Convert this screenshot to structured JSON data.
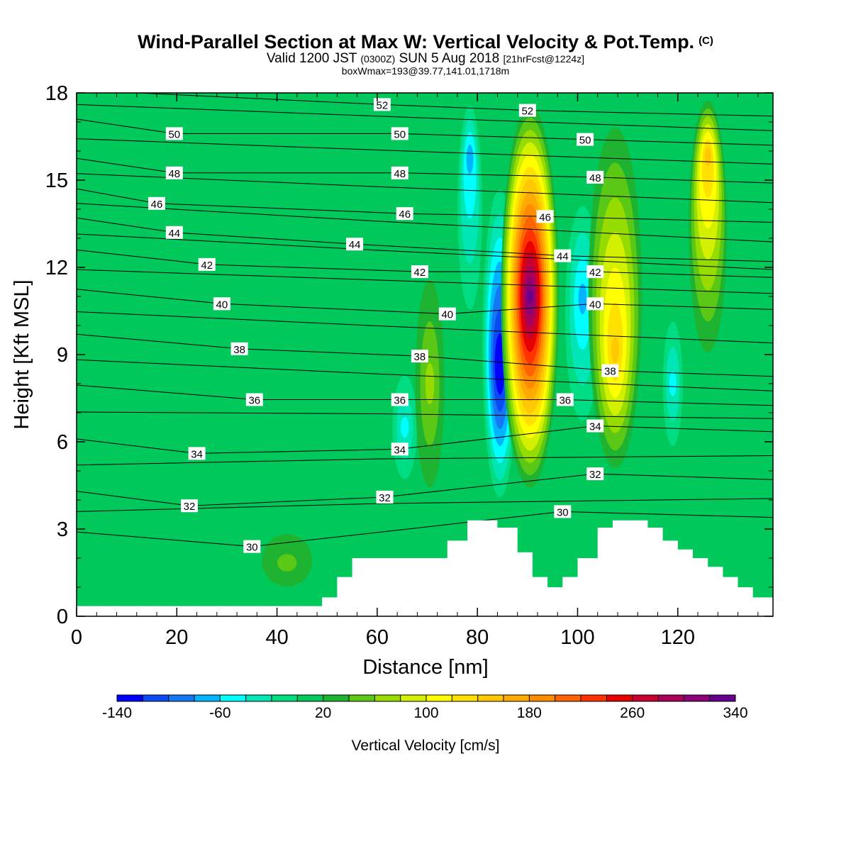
{
  "title": {
    "main": "Wind-Parallel Section at Max W: Vertical Velocity & Pot.Temp.",
    "copyright": "(C)",
    "valid_prefix": "Valid 1200 JST",
    "utc": "(0300Z)",
    "valid_date": "SUN 5 Aug 2018",
    "forecast": "[21hrFcst@1224z]",
    "box": "boxWmax=193@39.77,141.01,1718m"
  },
  "chart_data": {
    "type": "heatmap",
    "xlabel": "Distance [nm]",
    "ylabel": "Height [Kft MSL]",
    "xlim": [
      0,
      139
    ],
    "ylim": [
      0,
      18
    ],
    "xticks": [
      0,
      20,
      40,
      60,
      80,
      100,
      120
    ],
    "yticks": [
      0,
      3,
      6,
      9,
      12,
      15,
      18
    ],
    "colorbar": {
      "label": "Vertical Velocity [cm/s]",
      "tick_labels": [
        -140,
        -60,
        20,
        100,
        180,
        260,
        340
      ],
      "levels": [
        -140,
        -120,
        -100,
        -80,
        -60,
        -40,
        -20,
        0,
        20,
        40,
        60,
        80,
        100,
        120,
        140,
        160,
        180,
        200,
        220,
        240,
        260,
        280,
        300,
        320,
        340
      ],
      "colors": [
        "#0000ff",
        "#0a4bf5",
        "#1478f5",
        "#00b4ff",
        "#00ffff",
        "#00e6b4",
        "#00dc82",
        "#00c85a",
        "#1eb432",
        "#5ac814",
        "#96dc00",
        "#d2f000",
        "#ffff00",
        "#ffe100",
        "#ffc800",
        "#ffaa00",
        "#ff8c00",
        "#ff6400",
        "#ff3200",
        "#e60000",
        "#c80032",
        "#aa005a",
        "#8c0078",
        "#64008c"
      ]
    },
    "terrain_kft": [
      [
        0,
        0.35
      ],
      [
        49,
        0.35
      ],
      [
        49,
        0.65
      ],
      [
        52,
        0.65
      ],
      [
        52,
        1.35
      ],
      [
        55,
        1.35
      ],
      [
        55,
        2.0
      ],
      [
        74,
        2.0
      ],
      [
        74,
        2.6
      ],
      [
        78,
        2.6
      ],
      [
        78,
        3.3
      ],
      [
        84,
        3.3
      ],
      [
        84,
        3.05
      ],
      [
        88,
        3.05
      ],
      [
        88,
        2.2
      ],
      [
        91,
        2.2
      ],
      [
        91,
        1.35
      ],
      [
        94,
        1.35
      ],
      [
        94,
        1.0
      ],
      [
        97,
        1.0
      ],
      [
        97,
        1.35
      ],
      [
        100,
        1.35
      ],
      [
        100,
        2.0
      ],
      [
        104,
        2.0
      ],
      [
        104,
        3.05
      ],
      [
        107,
        3.05
      ],
      [
        107,
        3.3
      ],
      [
        114,
        3.3
      ],
      [
        114,
        3.05
      ],
      [
        117,
        3.05
      ],
      [
        117,
        2.6
      ],
      [
        120,
        2.6
      ],
      [
        120,
        2.3
      ],
      [
        123,
        2.3
      ],
      [
        123,
        2.0
      ],
      [
        126,
        2.0
      ],
      [
        126,
        1.7
      ],
      [
        129,
        1.7
      ],
      [
        129,
        1.35
      ],
      [
        132,
        1.35
      ],
      [
        132,
        1.0
      ],
      [
        135,
        1.0
      ],
      [
        135,
        0.65
      ],
      [
        139,
        0.65
      ]
    ],
    "vertical_velocity_bands": [
      {
        "center_nm": 84.5,
        "half_width_nm": 1.6,
        "bottom_kft": 3.5,
        "top_kft": 15.5,
        "peak_kft": 8.5,
        "value": -140
      },
      {
        "center_nm": 90.5,
        "half_width_nm": 2.6,
        "bottom_kft": 4.0,
        "top_kft": 18.0,
        "peak_kft": 11.0,
        "value": 330
      },
      {
        "center_nm": 101.0,
        "half_width_nm": 1.8,
        "bottom_kft": 5.5,
        "top_kft": 15.0,
        "peak_kft": 11.0,
        "value": -70
      },
      {
        "center_nm": 107.5,
        "half_width_nm": 2.6,
        "bottom_kft": 4.5,
        "top_kft": 18.0,
        "peak_kft": 9.0,
        "value": 140
      },
      {
        "center_nm": 126.0,
        "half_width_nm": 1.8,
        "bottom_kft": 8.0,
        "top_kft": 18.0,
        "peak_kft": 16.0,
        "value": 150
      },
      {
        "center_nm": 78.5,
        "half_width_nm": 1.2,
        "bottom_kft": 9.0,
        "top_kft": 18.0,
        "peak_kft": 16.0,
        "value": -60
      },
      {
        "center_nm": 65.5,
        "half_width_nm": 1.3,
        "bottom_kft": 4.0,
        "top_kft": 9.0,
        "peak_kft": 6.5,
        "value": -50
      },
      {
        "center_nm": 70.5,
        "half_width_nm": 1.6,
        "bottom_kft": 3.0,
        "top_kft": 13.0,
        "peak_kft": 8.0,
        "value": 70
      },
      {
        "center_nm": 42.0,
        "half_width_nm": 3.5,
        "bottom_kft": 0.5,
        "top_kft": 3.5,
        "peak_kft": 1.8,
        "value": 40
      },
      {
        "center_nm": 119.0,
        "half_width_nm": 1.0,
        "bottom_kft": 5.0,
        "top_kft": 11.0,
        "peak_kft": 8.0,
        "value": -50
      }
    ],
    "theta_contour_labels": [
      {
        "value": "52",
        "x_nm": 61,
        "y_kft": 17.6
      },
      {
        "value": "52",
        "x_nm": 90,
        "y_kft": 17.4
      },
      {
        "value": "50",
        "x_nm": 19.5,
        "y_kft": 16.6
      },
      {
        "value": "50",
        "x_nm": 64.5,
        "y_kft": 16.6
      },
      {
        "value": "50",
        "x_nm": 101.5,
        "y_kft": 16.4
      },
      {
        "value": "48",
        "x_nm": 19.5,
        "y_kft": 15.25
      },
      {
        "value": "48",
        "x_nm": 64.5,
        "y_kft": 15.25
      },
      {
        "value": "48",
        "x_nm": 103.5,
        "y_kft": 15.1
      },
      {
        "value": "46",
        "x_nm": 16,
        "y_kft": 14.2
      },
      {
        "value": "46",
        "x_nm": 65.5,
        "y_kft": 13.85
      },
      {
        "value": "46",
        "x_nm": 93.5,
        "y_kft": 13.75
      },
      {
        "value": "44",
        "x_nm": 19.5,
        "y_kft": 13.2
      },
      {
        "value": "44",
        "x_nm": 55.5,
        "y_kft": 12.8
      },
      {
        "value": "44",
        "x_nm": 97,
        "y_kft": 12.4
      },
      {
        "value": "42",
        "x_nm": 26,
        "y_kft": 12.1
      },
      {
        "value": "42",
        "x_nm": 68.5,
        "y_kft": 11.85
      },
      {
        "value": "42",
        "x_nm": 103.5,
        "y_kft": 11.85
      },
      {
        "value": "40",
        "x_nm": 29,
        "y_kft": 10.75
      },
      {
        "value": "40",
        "x_nm": 74,
        "y_kft": 10.4
      },
      {
        "value": "40",
        "x_nm": 103.5,
        "y_kft": 10.75
      },
      {
        "value": "38",
        "x_nm": 32.5,
        "y_kft": 9.2
      },
      {
        "value": "38",
        "x_nm": 68.5,
        "y_kft": 8.95
      },
      {
        "value": "38",
        "x_nm": 106.5,
        "y_kft": 8.45
      },
      {
        "value": "36",
        "x_nm": 35.5,
        "y_kft": 7.45
      },
      {
        "value": "36",
        "x_nm": 64.5,
        "y_kft": 7.45
      },
      {
        "value": "36",
        "x_nm": 97.5,
        "y_kft": 7.45
      },
      {
        "value": "34",
        "x_nm": 24,
        "y_kft": 5.6
      },
      {
        "value": "34",
        "x_nm": 64.5,
        "y_kft": 5.75
      },
      {
        "value": "34",
        "x_nm": 103.5,
        "y_kft": 6.55
      },
      {
        "value": "32",
        "x_nm": 22.5,
        "y_kft": 3.8
      },
      {
        "value": "32",
        "x_nm": 61.5,
        "y_kft": 4.1
      },
      {
        "value": "32",
        "x_nm": 103.5,
        "y_kft": 4.9
      },
      {
        "value": "30",
        "x_nm": 35,
        "y_kft": 2.4
      },
      {
        "value": "30",
        "x_nm": 97,
        "y_kft": 3.6
      }
    ]
  }
}
